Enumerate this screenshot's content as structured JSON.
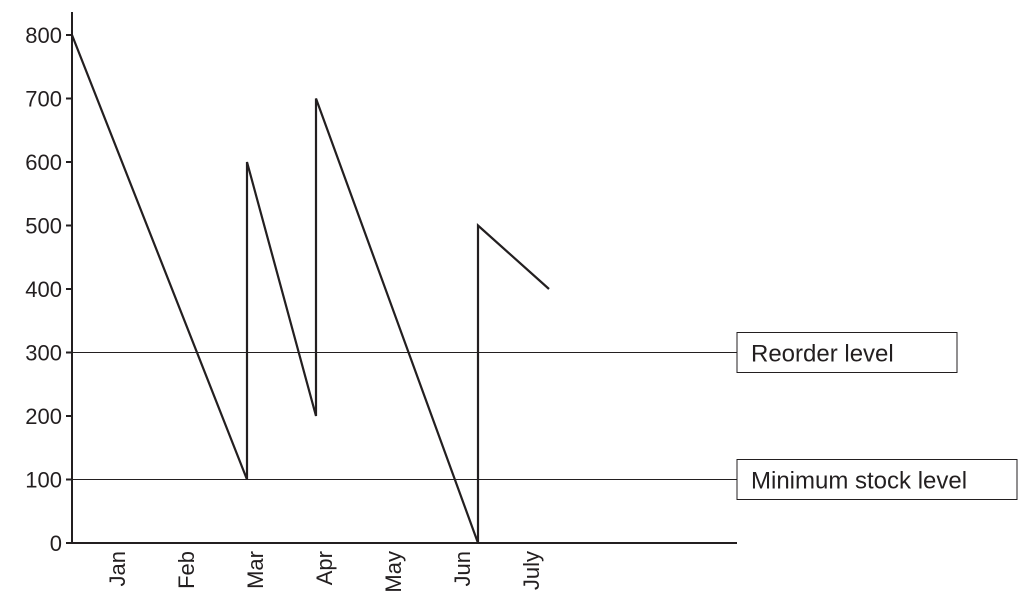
{
  "chart_data": {
    "type": "line",
    "title": "",
    "xlabel": "",
    "ylabel": "",
    "ylim": [
      0,
      800
    ],
    "yticks": [
      0,
      100,
      200,
      300,
      400,
      500,
      600,
      700,
      800
    ],
    "ytick_labels": [
      "0",
      "100",
      "200",
      "300",
      "400",
      "500",
      "600",
      "700",
      "800"
    ],
    "xtick_labels": [
      "Jan",
      "Feb",
      "Mar",
      "Apr",
      "May",
      "Jun",
      "July"
    ],
    "xtick_label_rotation": "vertical",
    "grid": false,
    "legend": "none",
    "series": [
      {
        "points": [
          {
            "x": "start",
            "y": 800
          },
          {
            "x": "Mar",
            "y": 100
          },
          {
            "x": "Mar",
            "y": 600
          },
          {
            "x": "Apr",
            "y": 200
          },
          {
            "x": "Apr",
            "y": 700
          },
          {
            "x": "Jun",
            "y": 0
          },
          {
            "x": "Jun",
            "y": 500
          },
          {
            "x": "July",
            "y": 400
          }
        ]
      }
    ],
    "reference_lines": [
      {
        "label": "Reorder level",
        "y": 300
      },
      {
        "label": "Minimum stock level",
        "y": 100
      }
    ],
    "colors": {
      "line": "#231f20",
      "axis": "#231f20",
      "text": "#231f20"
    }
  }
}
